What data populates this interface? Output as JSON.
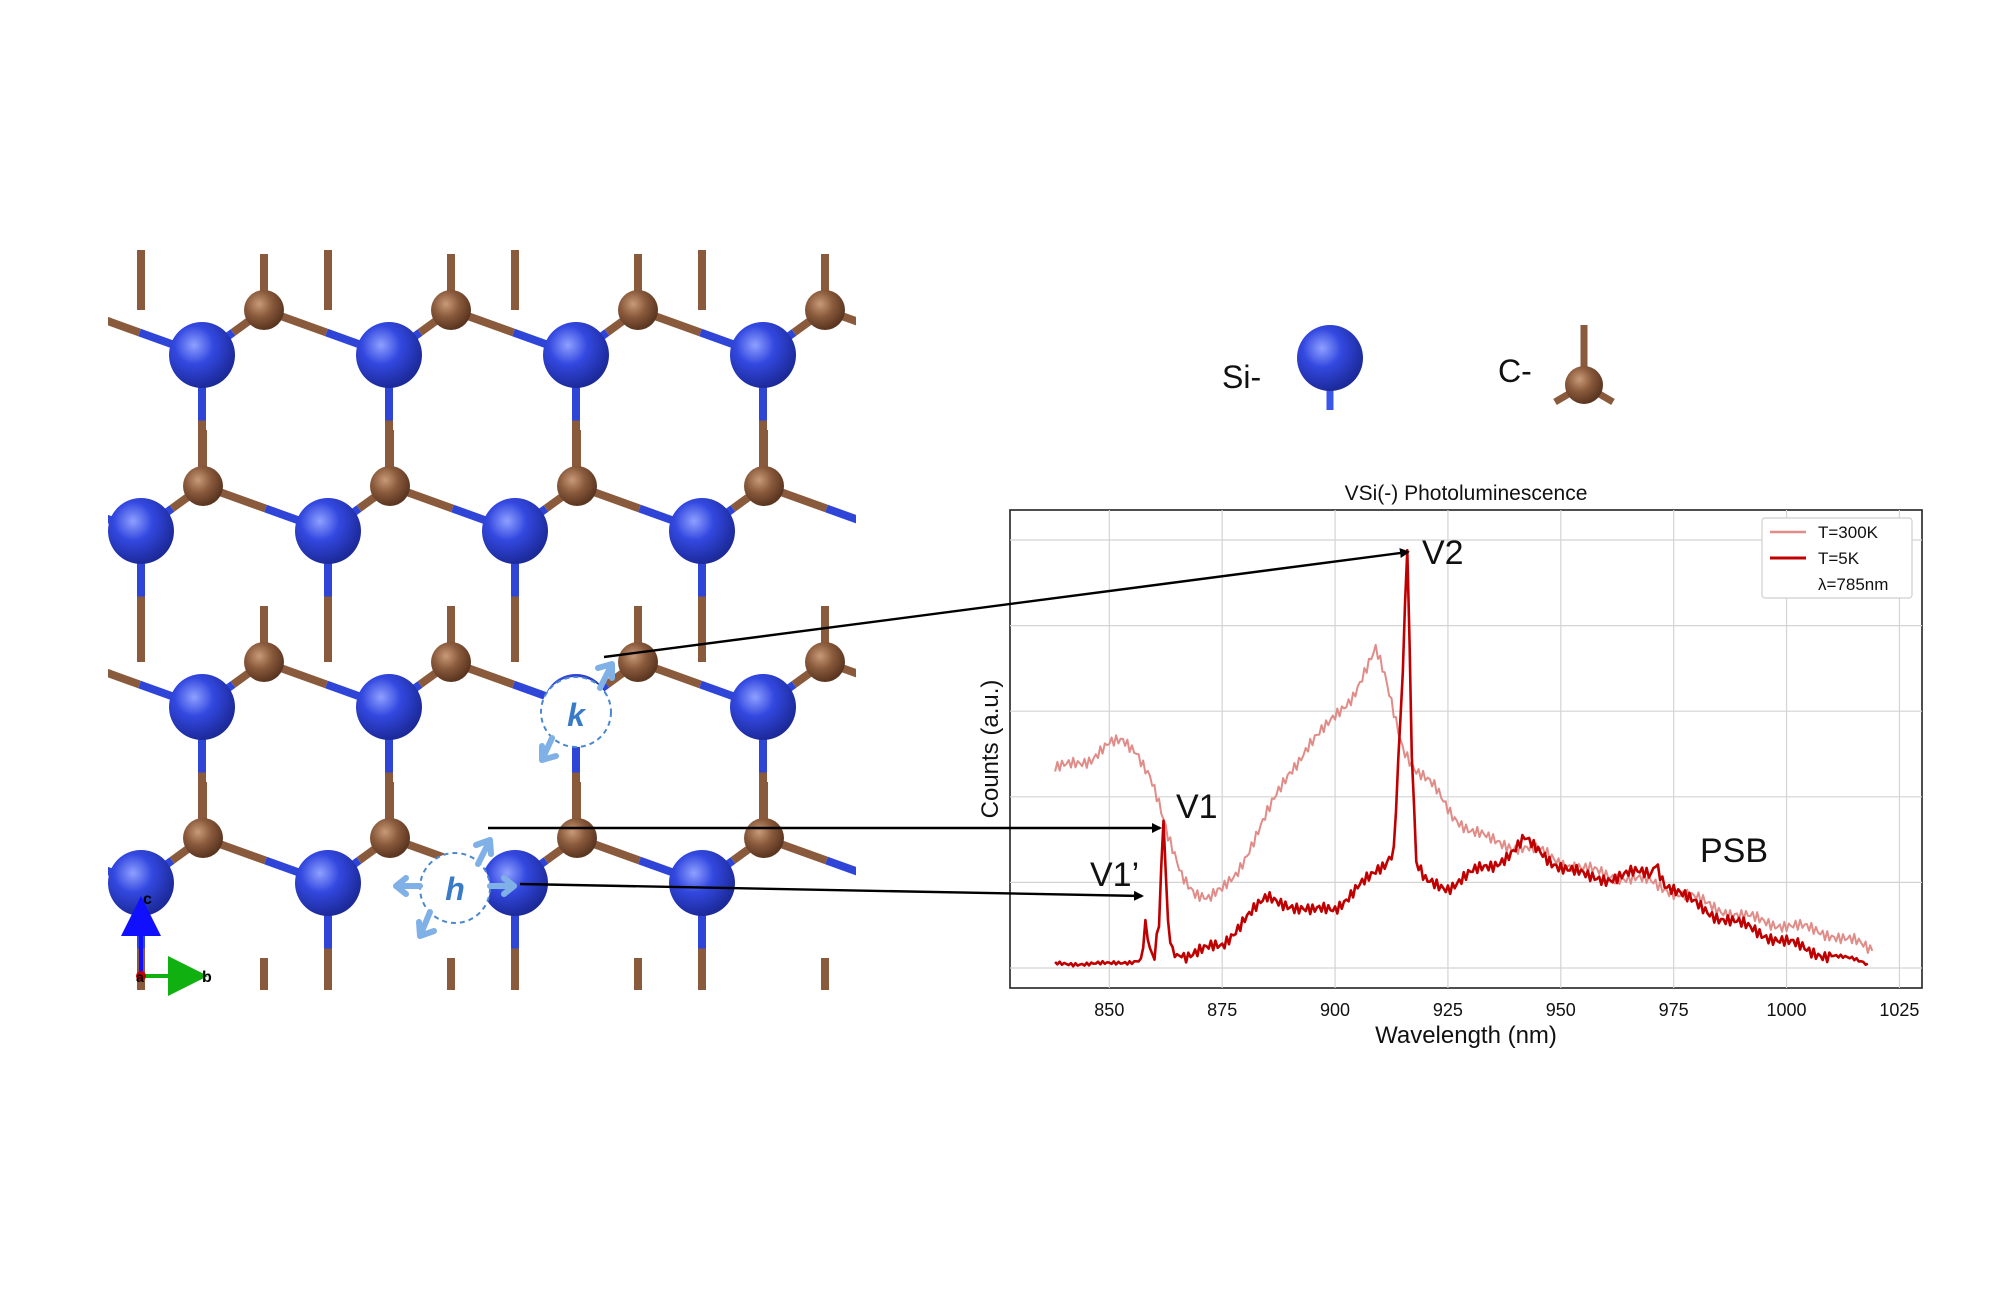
{
  "legend_atoms": {
    "si_label": "Si-",
    "c_label": "C-"
  },
  "sites": {
    "k_label": "k",
    "h_label": "h"
  },
  "axes_indicator": {
    "c_label": "c",
    "a_label": "a",
    "b_label": "b"
  },
  "colors": {
    "si": "#2f45d8",
    "c": "#8a5a3c",
    "t300": "#e08c88",
    "t5": "#c00000",
    "arrow": "#000000",
    "site_marker": "#4a88d0"
  },
  "chart_data": {
    "type": "line",
    "title": "VSi(-) Photoluminescence",
    "xlabel": "Wavelength (nm)",
    "ylabel": "Counts (a.u.)",
    "xlim": [
      828,
      1030
    ],
    "ylim": [
      0,
      1.0
    ],
    "xticks": [
      "850",
      "875",
      "900",
      "925",
      "950",
      "975",
      "1000",
      "1025"
    ],
    "grid": true,
    "legend_position": "top-right",
    "legend": [
      "T=300K",
      "T=5K",
      "λ=785nm"
    ],
    "series": [
      {
        "name": "T=300K",
        "x": [
          838,
          842,
          846,
          850,
          853,
          856,
          859,
          861,
          863,
          866,
          869,
          872,
          875,
          878,
          882,
          886,
          890,
          894,
          898,
          901,
          904,
          907,
          909,
          911,
          913,
          915,
          918,
          922,
          926,
          930,
          934,
          938,
          942,
          946,
          950,
          955,
          960,
          965,
          970,
          975,
          980,
          985,
          990,
          995,
          1000,
          1005,
          1010,
          1015,
          1019
        ],
        "y": [
          0.46,
          0.48,
          0.49,
          0.52,
          0.53,
          0.51,
          0.45,
          0.38,
          0.3,
          0.22,
          0.18,
          0.16,
          0.18,
          0.22,
          0.3,
          0.38,
          0.46,
          0.52,
          0.56,
          0.6,
          0.64,
          0.7,
          0.74,
          0.68,
          0.6,
          0.52,
          0.46,
          0.42,
          0.36,
          0.32,
          0.3,
          0.29,
          0.28,
          0.27,
          0.25,
          0.23,
          0.22,
          0.21,
          0.2,
          0.18,
          0.16,
          0.14,
          0.12,
          0.11,
          0.1,
          0.09,
          0.08,
          0.06,
          0.04
        ]
      },
      {
        "name": "T=5K",
        "x": [
          838,
          845,
          850,
          855,
          857,
          858,
          859,
          860,
          861,
          862,
          863,
          864,
          866,
          870,
          875,
          880,
          885,
          890,
          895,
          900,
          905,
          908,
          911,
          913,
          915,
          916,
          917,
          918,
          920,
          925,
          930,
          935,
          940,
          942,
          944,
          948,
          952,
          956,
          960,
          965,
          970,
          971,
          973,
          978,
          985,
          990,
          995,
          1000,
          1005,
          1010,
          1015,
          1018
        ],
        "y": [
          0.01,
          0.01,
          0.01,
          0.015,
          0.02,
          0.1,
          0.04,
          0.02,
          0.1,
          0.34,
          0.1,
          0.04,
          0.03,
          0.04,
          0.05,
          0.12,
          0.16,
          0.15,
          0.13,
          0.14,
          0.19,
          0.21,
          0.24,
          0.28,
          0.7,
          0.99,
          0.5,
          0.24,
          0.2,
          0.19,
          0.22,
          0.24,
          0.28,
          0.3,
          0.28,
          0.25,
          0.23,
          0.21,
          0.21,
          0.22,
          0.22,
          0.25,
          0.2,
          0.16,
          0.12,
          0.1,
          0.08,
          0.06,
          0.04,
          0.03,
          0.02,
          0.01
        ]
      }
    ],
    "annotations": [
      {
        "text": "V2",
        "x": 916.5,
        "y": 1.0
      },
      {
        "text": "V1",
        "x": 862,
        "y": 0.34
      },
      {
        "text": "V1’",
        "x": 858,
        "y": 0.1
      },
      {
        "text": "PSB",
        "x": 975,
        "y": 0.25
      }
    ]
  }
}
